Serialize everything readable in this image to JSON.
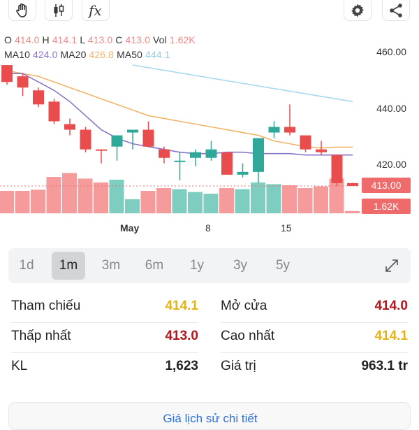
{
  "toolbar": {
    "left_icons": [
      "hand-drag-icon",
      "candlestick-icon",
      "function-fx-icon"
    ],
    "right_icons": [
      "gear-icon",
      "share-icon"
    ],
    "fx_label": "fx"
  },
  "ohlc": {
    "o_label": "O",
    "o": "414.0",
    "h_label": "H",
    "h": "414.1",
    "l_label": "L",
    "l": "413.0",
    "c_label": "C",
    "c": "413.0",
    "vol_label": "Vol",
    "vol": "1.62K"
  },
  "ma": {
    "ma10_label": "MA10",
    "ma10": "424.0",
    "ma20_label": "MA20",
    "ma20": "426.8",
    "ma50_label": "MA50",
    "ma50": "444.1"
  },
  "colors": {
    "up": "#5fbfb0",
    "down": "#ef6b6b",
    "ma10": "#8a74c9",
    "ma20": "#f1b56a",
    "ma50": "#a9d8ef"
  },
  "chart_data": {
    "type": "candlestick",
    "y_ticks": [
      "460.00",
      "440.00",
      "420.00"
    ],
    "price_tag": "413.00",
    "volume_tag": "1.62K",
    "x_ticks": [
      "May",
      "8",
      "15"
    ],
    "candles": [
      {
        "o": 456,
        "c": 450,
        "h": 456,
        "l": 449,
        "dir": "down"
      },
      {
        "o": 452,
        "c": 448,
        "h": 453,
        "l": 445,
        "dir": "down"
      },
      {
        "o": 447,
        "c": 442,
        "h": 448,
        "l": 441,
        "dir": "down"
      },
      {
        "o": 443,
        "c": 436,
        "h": 444,
        "l": 435,
        "dir": "down"
      },
      {
        "o": 435,
        "c": 433,
        "h": 437,
        "l": 431,
        "dir": "down"
      },
      {
        "o": 433,
        "c": 426,
        "h": 434,
        "l": 425,
        "dir": "down"
      },
      {
        "o": 426,
        "c": 426,
        "h": 426,
        "l": 421,
        "dir": "down"
      },
      {
        "o": 427,
        "c": 431,
        "h": 431,
        "l": 422,
        "dir": "up"
      },
      {
        "o": 432,
        "c": 433,
        "h": 433,
        "l": 426,
        "dir": "up"
      },
      {
        "o": 433,
        "c": 427,
        "h": 436,
        "l": 427,
        "dir": "down"
      },
      {
        "o": 426,
        "c": 423,
        "h": 427,
        "l": 421,
        "dir": "down"
      },
      {
        "o": 422,
        "c": 422,
        "h": 425,
        "l": 415,
        "dir": "up"
      },
      {
        "o": 423,
        "c": 425,
        "h": 426,
        "l": 420,
        "dir": "up"
      },
      {
        "o": 423,
        "c": 426,
        "h": 429,
        "l": 422,
        "dir": "up"
      },
      {
        "o": 425,
        "c": 417,
        "h": 425,
        "l": 417,
        "dir": "down"
      },
      {
        "o": 417,
        "c": 418,
        "h": 421,
        "l": 416,
        "dir": "up"
      },
      {
        "o": 418,
        "c": 430,
        "h": 430,
        "l": 414,
        "dir": "up"
      },
      {
        "o": 432,
        "c": 434,
        "h": 436,
        "l": 430,
        "dir": "up"
      },
      {
        "o": 434,
        "c": 432,
        "h": 442,
        "l": 431,
        "dir": "down"
      },
      {
        "o": 431,
        "c": 426,
        "h": 431,
        "l": 425,
        "dir": "down"
      },
      {
        "o": 426,
        "c": 425,
        "h": 429,
        "l": 424,
        "dir": "down"
      },
      {
        "o": 424,
        "c": 414,
        "h": 424,
        "l": 413,
        "dir": "down"
      },
      {
        "o": 414,
        "c": 413,
        "h": 414.1,
        "l": 413,
        "dir": "down"
      }
    ],
    "volume": [
      0.4,
      0.4,
      0.42,
      0.65,
      0.72,
      0.62,
      0.55,
      0.6,
      0.25,
      0.4,
      0.45,
      0.43,
      0.38,
      0.35,
      0.45,
      0.43,
      0.55,
      0.52,
      0.5,
      0.45,
      0.48,
      0.62,
      0.04
    ],
    "ma10": [
      453,
      453,
      450,
      447,
      443,
      438,
      433,
      430,
      428,
      427,
      426,
      425,
      424.5,
      424.5,
      425,
      425,
      424.5,
      424.5,
      424.5,
      424,
      424,
      424,
      424
    ],
    "ma20": [
      454,
      453,
      452,
      450,
      448,
      446,
      444,
      442,
      440,
      438,
      437,
      436,
      435,
      434,
      433,
      432,
      431,
      429,
      428,
      427,
      426.5,
      426.8,
      426.8
    ],
    "ma50_x_range": [
      8,
      22
    ],
    "ma50": [
      456,
      443
    ]
  },
  "periods": {
    "items": [
      "1d",
      "1m",
      "3m",
      "6m",
      "1y",
      "3y",
      "5y"
    ],
    "active": "1m"
  },
  "stats": {
    "ref_label": "Tham chiếu",
    "ref_value": "414.1",
    "open_label": "Mở cửa",
    "open_value": "414.0",
    "low_label": "Thấp nhất",
    "low_value": "413.0",
    "high_label": "Cao nhất",
    "high_value": "414.1",
    "vol_label": "KL",
    "vol_value": "1,623",
    "val_label": "Giá trị",
    "val_value": "963.1 tr"
  },
  "bottom_button": "Giá lịch sử chi tiết"
}
